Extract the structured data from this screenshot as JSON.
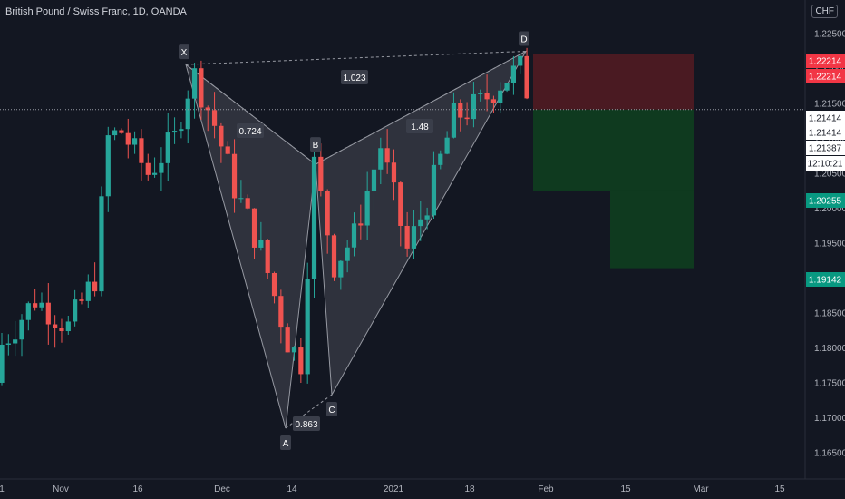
{
  "header": {
    "symbol_title": "British Pound / Swiss Franc, 1D, OANDA",
    "currency": "CHF"
  },
  "colors": {
    "background": "#131722",
    "up": "#26a69a",
    "down": "#ef5350",
    "pattern_fill": "#9598a1",
    "stop_zone": "#4a1a22",
    "target_zone": "#0f3a1f",
    "grid_dotted": "#9598a1"
  },
  "chart_data": {
    "type": "candlestick",
    "title": "British Pound / Swiss Franc, 1D, OANDA",
    "ylim": [
      1.162,
      1.2275
    ],
    "y_ticks": [
      "1.22500",
      "1.22000",
      "1.21500",
      "1.21000",
      "1.20500",
      "1.20000",
      "1.19500",
      "1.19000",
      "1.18500",
      "1.18000",
      "1.17500",
      "1.17000",
      "1.16500"
    ],
    "x_ticks": [
      "1",
      "Nov",
      "16",
      "Dec",
      "14",
      "2021",
      "18",
      "Feb",
      "15",
      "Mar",
      "15"
    ],
    "last_price": 1.21414,
    "price_labels": [
      {
        "text": "1.22214",
        "color": "#f23645",
        "value": 1.22214
      },
      {
        "text": "1.22214",
        "color": "#f23645",
        "value": 1.22214
      },
      {
        "text": "1.21414",
        "color": "#ffffff",
        "value": 1.21414
      },
      {
        "text": "1.21414",
        "color": "#ffffff",
        "value": 1.21414
      },
      {
        "text": "1.21387",
        "color": "#ffffff",
        "value": 1.21387
      },
      {
        "text": "12:10:21",
        "color": "#ffffff",
        "value": 1.20955
      },
      {
        "text": "1.20255",
        "color": "#089981",
        "value": 1.20255
      },
      {
        "text": "1.19142",
        "color": "#089981",
        "value": 1.19142
      }
    ],
    "pattern": {
      "points": [
        {
          "name": "X",
          "value": 1.2206
        },
        {
          "name": "A",
          "value": 1.1685
        },
        {
          "name": "B",
          "value": 1.2063
        },
        {
          "name": "C",
          "value": 1.1733
        },
        {
          "name": "D",
          "value": 1.2225
        }
      ],
      "ratios": [
        "0.724",
        "0.863",
        "1.48",
        "1.023"
      ]
    },
    "position": {
      "entry": 1.21414,
      "stop": 1.22214,
      "target_1": 1.20255,
      "target_2": 1.19142
    }
  }
}
